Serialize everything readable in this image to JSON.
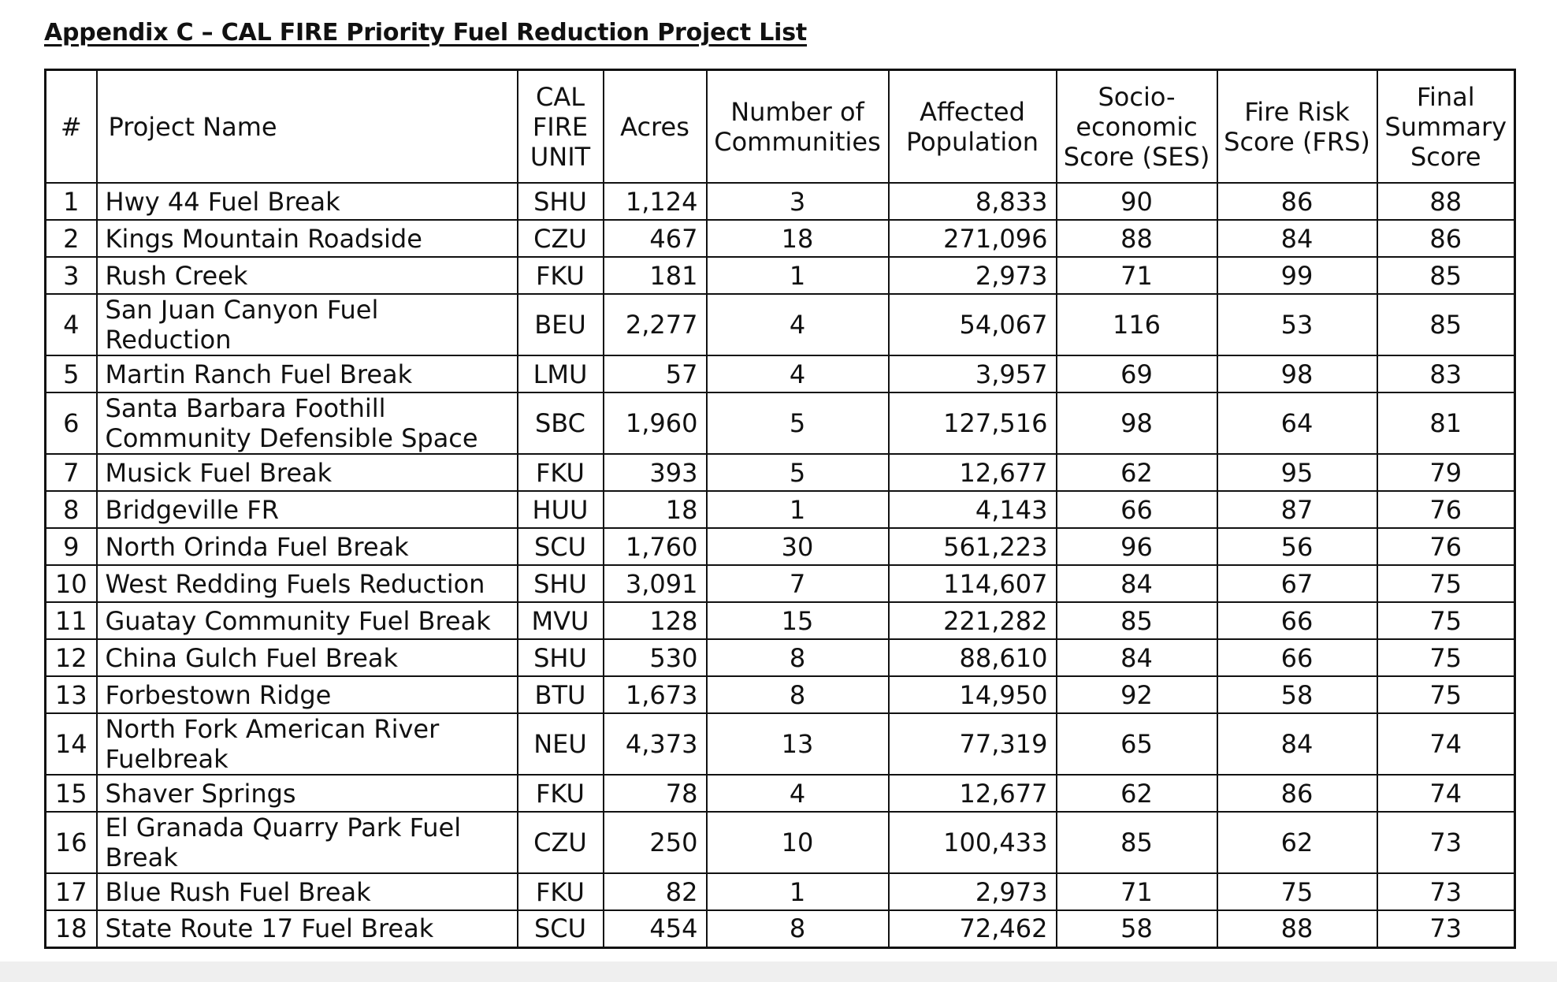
{
  "document": {
    "title": "Appendix C – CAL FIRE Priority Fuel Reduction Project List"
  },
  "table": {
    "headers": {
      "num": "#",
      "name": "Project Name",
      "unit": "CAL FIRE UNIT",
      "acres": "Acres",
      "communities": "Number of Communities",
      "population": "Affected Population",
      "ses": "Socio-economic Score (SES)",
      "frs": "Fire Risk Score (FRS)",
      "final": "Final Summary Score"
    },
    "rows": [
      {
        "num": "1",
        "name": "Hwy 44 Fuel Break",
        "unit": "SHU",
        "acres": "1,124",
        "communities": "3",
        "population": "8,833",
        "ses": "90",
        "frs": "86",
        "final": "88"
      },
      {
        "num": "2",
        "name": "Kings Mountain Roadside",
        "unit": "CZU",
        "acres": "467",
        "communities": "18",
        "population": "271,096",
        "ses": "88",
        "frs": "84",
        "final": "86"
      },
      {
        "num": "3",
        "name": "Rush Creek",
        "unit": "FKU",
        "acres": "181",
        "communities": "1",
        "population": "2,973",
        "ses": "71",
        "frs": "99",
        "final": "85"
      },
      {
        "num": "4",
        "name": "San Juan Canyon Fuel Reduction",
        "unit": "BEU",
        "acres": "2,277",
        "communities": "4",
        "population": "54,067",
        "ses": "116",
        "frs": "53",
        "final": "85"
      },
      {
        "num": "5",
        "name": "Martin Ranch Fuel Break",
        "unit": "LMU",
        "acres": "57",
        "communities": "4",
        "population": "3,957",
        "ses": "69",
        "frs": "98",
        "final": "83"
      },
      {
        "num": "6",
        "name": "Santa Barbara Foothill Community Defensible Space",
        "unit": "SBC",
        "acres": "1,960",
        "communities": "5",
        "population": "127,516",
        "ses": "98",
        "frs": "64",
        "final": "81"
      },
      {
        "num": "7",
        "name": "Musick Fuel Break",
        "unit": "FKU",
        "acres": "393",
        "communities": "5",
        "population": "12,677",
        "ses": "62",
        "frs": "95",
        "final": "79"
      },
      {
        "num": "8",
        "name": "Bridgeville FR",
        "unit": "HUU",
        "acres": "18",
        "communities": "1",
        "population": "4,143",
        "ses": "66",
        "frs": "87",
        "final": "76"
      },
      {
        "num": "9",
        "name": "North Orinda Fuel Break",
        "unit": "SCU",
        "acres": "1,760",
        "communities": "30",
        "population": "561,223",
        "ses": "96",
        "frs": "56",
        "final": "76"
      },
      {
        "num": "10",
        "name": "West Redding Fuels Reduction",
        "unit": "SHU",
        "acres": "3,091",
        "communities": "7",
        "population": "114,607",
        "ses": "84",
        "frs": "67",
        "final": "75"
      },
      {
        "num": "11",
        "name": "Guatay Community Fuel Break",
        "unit": "MVU",
        "acres": "128",
        "communities": "15",
        "population": "221,282",
        "ses": "85",
        "frs": "66",
        "final": "75"
      },
      {
        "num": "12",
        "name": "China Gulch Fuel Break",
        "unit": "SHU",
        "acres": "530",
        "communities": "8",
        "population": "88,610",
        "ses": "84",
        "frs": "66",
        "final": "75"
      },
      {
        "num": "13",
        "name": "Forbestown Ridge",
        "unit": "BTU",
        "acres": "1,673",
        "communities": "8",
        "population": "14,950",
        "ses": "92",
        "frs": "58",
        "final": "75"
      },
      {
        "num": "14",
        "name": "North Fork American River Fuelbreak",
        "unit": "NEU",
        "acres": "4,373",
        "communities": "13",
        "population": "77,319",
        "ses": "65",
        "frs": "84",
        "final": "74"
      },
      {
        "num": "15",
        "name": "Shaver Springs",
        "unit": "FKU",
        "acres": "78",
        "communities": "4",
        "population": "12,677",
        "ses": "62",
        "frs": "86",
        "final": "74"
      },
      {
        "num": "16",
        "name": "El Granada Quarry Park Fuel Break",
        "unit": "CZU",
        "acres": "250",
        "communities": "10",
        "population": "100,433",
        "ses": "85",
        "frs": "62",
        "final": "73"
      },
      {
        "num": "17",
        "name": "Blue Rush Fuel Break",
        "unit": "FKU",
        "acres": "82",
        "communities": "1",
        "population": "2,973",
        "ses": "71",
        "frs": "75",
        "final": "73"
      },
      {
        "num": "18",
        "name": "State Route 17 Fuel Break",
        "unit": "SCU",
        "acres": "454",
        "communities": "8",
        "population": "72,462",
        "ses": "58",
        "frs": "88",
        "final": "73"
      }
    ]
  }
}
